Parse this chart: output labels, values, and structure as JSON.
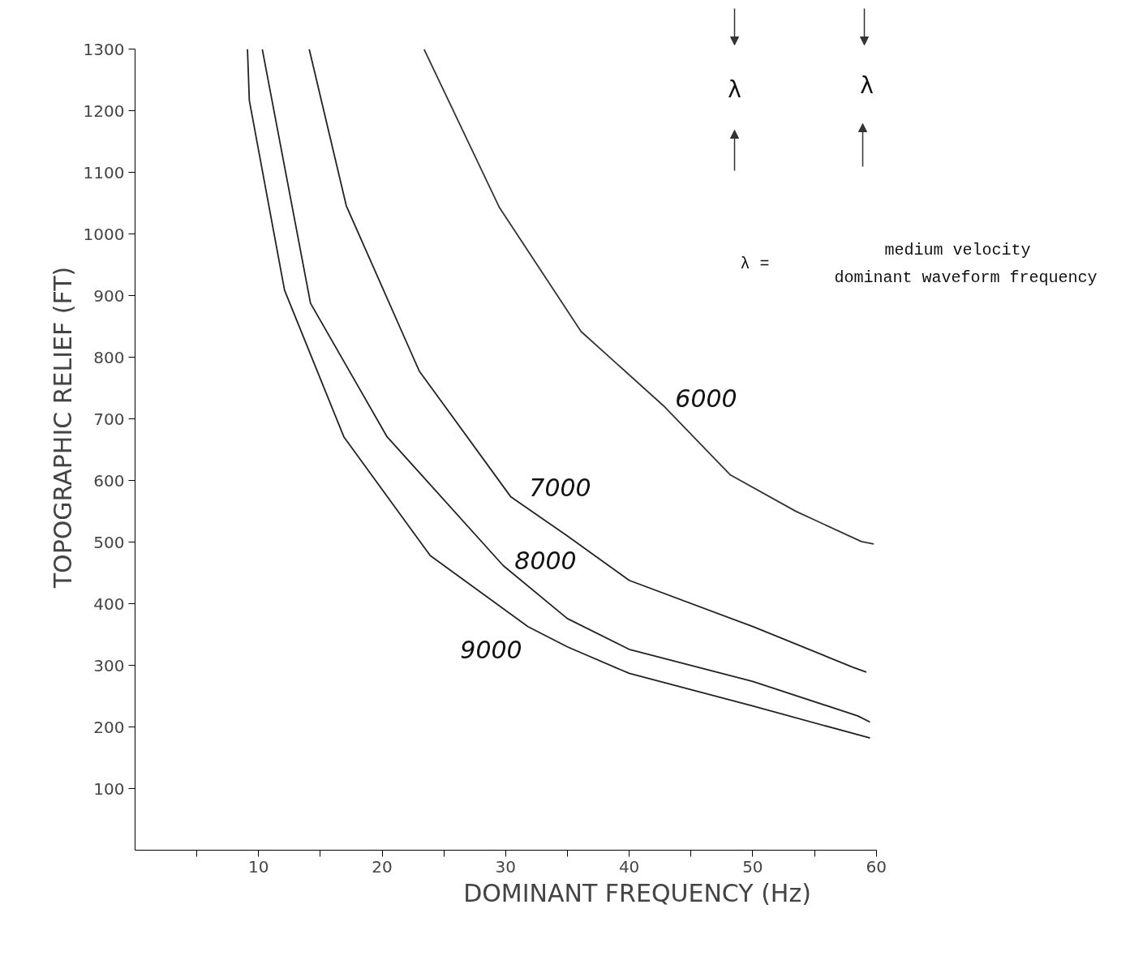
{
  "chart_data": {
    "type": "line",
    "xlabel": "DOMINANT FREQUENCY (Hz)",
    "ylabel": "TOPOGRAPHIC RELIEF (FT)",
    "xlim": [
      0,
      60
    ],
    "ylim": [
      0,
      1300
    ],
    "xticks": [
      {
        "value": 5,
        "label": null
      },
      10,
      {
        "value": 15,
        "label": null
      },
      20,
      {
        "value": 25,
        "label": null
      },
      30,
      {
        "value": 35,
        "label": null
      },
      40,
      {
        "value": 45,
        "label": null
      },
      50,
      {
        "value": 55,
        "label": null
      },
      60
    ],
    "yticks": [
      100,
      200,
      300,
      400,
      500,
      600,
      700,
      800,
      900,
      1000,
      1100,
      1200,
      1300
    ],
    "grid": false,
    "marker": "none",
    "line_style": "solid",
    "series": [
      {
        "color": "#333333",
        "x": [
          23.4,
          29.5,
          36.1,
          42.8,
          48.2,
          53.5,
          58.8,
          59.8
        ],
        "values": [
          1300,
          1043,
          842,
          721,
          609,
          550,
          501,
          497
        ]
      },
      {
        "color": "#222222",
        "x": [
          14.1,
          17.1,
          23.0,
          30.4,
          35.0,
          40.0,
          50.0,
          58.1,
          59.2
        ],
        "values": [
          1300,
          1046,
          778,
          574,
          510,
          438,
          363,
          297,
          289
        ]
      },
      {
        "color": "#222222",
        "x": [
          10.3,
          14.2,
          20.4,
          29.8,
          35.0,
          40.0,
          50.0,
          58.5,
          59.5
        ],
        "values": [
          1300,
          888,
          671,
          462,
          376,
          326,
          274,
          218,
          208
        ]
      },
      {
        "color": "#222222",
        "x": [
          9.1,
          9.25,
          12.1,
          16.9,
          23.9,
          31.8,
          35.0,
          40.0,
          50.0,
          59.5
        ],
        "values": [
          1300,
          1217,
          909,
          671,
          478,
          363,
          330,
          287,
          234,
          182
        ]
      }
    ],
    "annotations": [
      "6000",
      "7000",
      "8000",
      "9000",
      "λ",
      "λ",
      "λ =",
      "medium velocity",
      "dominant waveform frequency"
    ]
  }
}
